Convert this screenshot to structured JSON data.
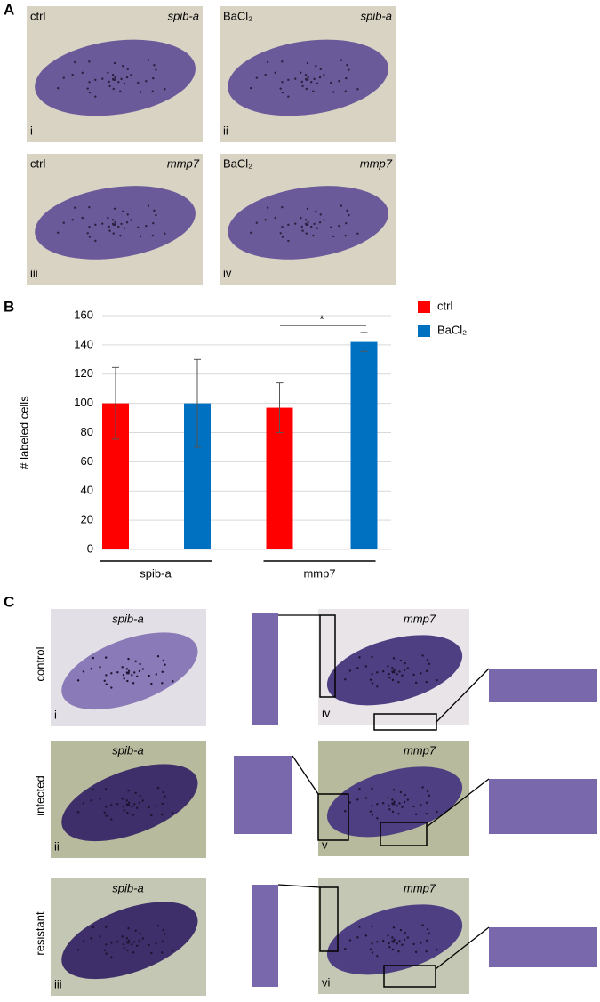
{
  "panel_a": {
    "label": "A",
    "images": [
      {
        "condition": "ctrl",
        "gene": "spib-a",
        "numeral": "i"
      },
      {
        "condition": "BaCl₂",
        "gene": "spib-a",
        "numeral": "ii"
      },
      {
        "condition": "ctrl",
        "gene": "mmp7",
        "numeral": "iii"
      },
      {
        "condition": "BaCl₂",
        "gene": "mmp7",
        "numeral": "iv"
      }
    ]
  },
  "chart_data": {
    "type": "bar",
    "label": "B",
    "y_label": "# labeled cells",
    "categories": [
      "spib-a",
      "mmp7"
    ],
    "series": [
      {
        "name": "ctrl",
        "color": "#ff0000",
        "values": [
          100,
          97
        ],
        "errors": [
          24.5,
          17
        ]
      },
      {
        "name": "BaCl₂",
        "color": "#0070c0",
        "values": [
          100,
          142
        ],
        "errors": [
          30,
          6.5
        ]
      }
    ],
    "ylim": [
      0,
      160
    ],
    "yticks": [
      0,
      20,
      40,
      60,
      80,
      100,
      120,
      140,
      160
    ],
    "annotation": "*",
    "legend": "right"
  },
  "panel_c": {
    "label": "C",
    "rows": [
      {
        "condition": "control",
        "left_gene": "spib-a",
        "left_numeral": "i",
        "right_gene": "mmp7",
        "right_numeral": "iv"
      },
      {
        "condition": "infected",
        "left_gene": "spib-a",
        "left_numeral": "ii",
        "right_gene": "mmp7",
        "right_numeral": "v"
      },
      {
        "condition": "resistant",
        "left_gene": "spib-a",
        "left_numeral": "iii",
        "right_gene": "mmp7",
        "right_numeral": "vi"
      }
    ]
  }
}
